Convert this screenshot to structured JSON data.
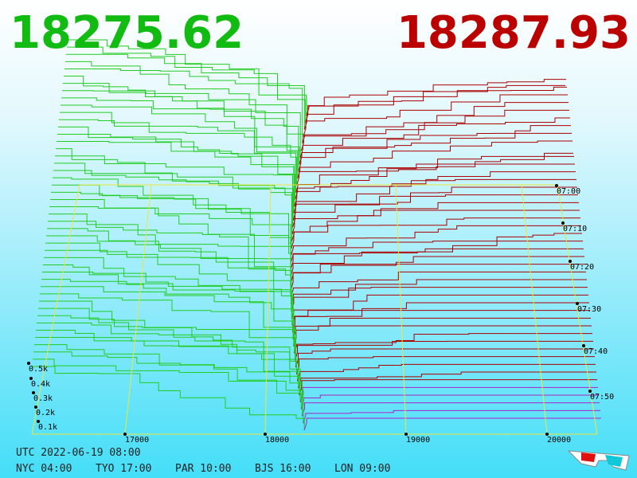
{
  "prices": {
    "bid": "18275.62",
    "ask": "18287.93"
  },
  "price_axis": {
    "ticks": [
      "17000",
      "18000",
      "19000",
      "20000"
    ]
  },
  "time_axis": {
    "ticks": [
      "07:00",
      "07:10",
      "07:20",
      "07:30",
      "07:40",
      "07:50"
    ]
  },
  "volume_axis": {
    "ticks": [
      "0.5k",
      "0.4k",
      "0.3k",
      "0.2k",
      "0.1k"
    ]
  },
  "footer": {
    "utc": "UTC 2022-06-19 08:00",
    "cities": [
      "NYC 04:00",
      "TYO 17:00",
      "PAR 10:00",
      "BJS 16:00",
      "LON 09:00"
    ]
  }
}
